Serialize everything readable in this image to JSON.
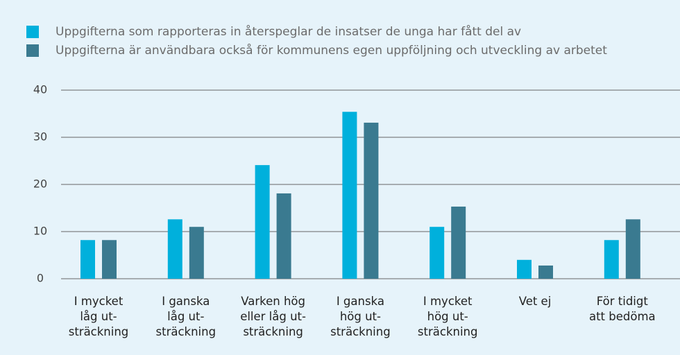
{
  "chart_data": {
    "type": "bar",
    "categories": [
      "I mycket\nlåg ut-\nsträckning",
      "I ganska\nlåg ut-\nsträckning",
      "Varken hög\neller låg ut-\nsträckning",
      "I ganska\nhög ut-\nsträckning",
      "I mycket\nhög ut-\nsträckning",
      "Vet ej",
      "För tidigt\natt bedöma"
    ],
    "series": [
      {
        "name": "Uppgifterna som rapporteras in återspeglar de insatser de unga har fått del av",
        "color": "#00b0dc",
        "values": [
          8.2,
          12.6,
          24.1,
          35.4,
          11.0,
          4.0,
          8.2
        ]
      },
      {
        "name": "Uppgifterna är användbara också för kommunens egen uppföljning och utveckling av arbetet",
        "color": "#3a7a90",
        "values": [
          8.2,
          11.0,
          18.1,
          33.1,
          15.3,
          2.8,
          12.6
        ]
      }
    ],
    "ylim": [
      0,
      40
    ],
    "yticks": [
      0,
      10,
      20,
      30,
      40
    ],
    "grid": true,
    "legend": "top-left"
  }
}
